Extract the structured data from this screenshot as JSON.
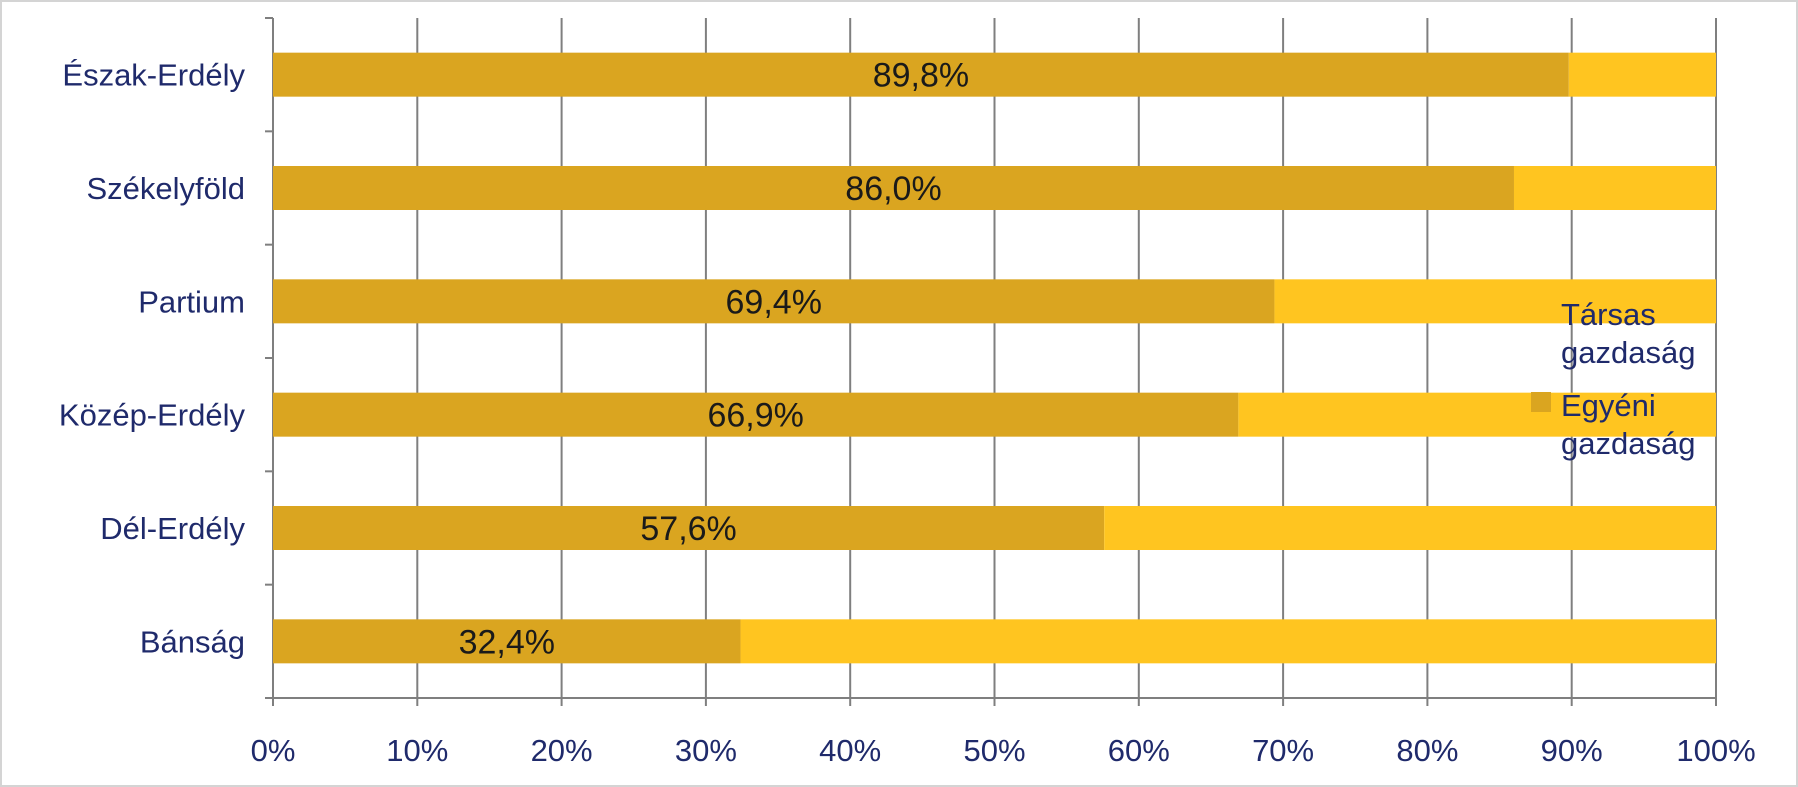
{
  "chart_data": {
    "type": "bar",
    "orientation": "horizontal",
    "stacked": "percent",
    "categories": [
      "Észak-Erdély",
      "Székelyföld",
      "Partium",
      "Közép-Erdély",
      "Dél-Erdély",
      "Bánság"
    ],
    "series": [
      {
        "name": "Egyéni gazdaság",
        "values": [
          89.8,
          86.0,
          69.4,
          66.9,
          57.6,
          32.4
        ],
        "labels": [
          "89,8%",
          "86,0%",
          "69,4%",
          "66,9%",
          "57,6%",
          "32,4%"
        ],
        "color": "#daa520"
      },
      {
        "name": "Társas gazdaság",
        "values": [
          10.2,
          14.0,
          30.6,
          33.1,
          42.4,
          67.6
        ],
        "color": "#ffc520"
      }
    ],
    "x_ticks": [
      "0%",
      "10%",
      "20%",
      "30%",
      "40%",
      "50%",
      "60%",
      "70%",
      "80%",
      "90%",
      "100%"
    ],
    "xlim": [
      0,
      100
    ],
    "grid": "vertical",
    "legend": {
      "position": "right",
      "entries": [
        {
          "line1": "Társas",
          "line2": "gazdaság",
          "series": 1
        },
        {
          "line1": "Egyéni",
          "line2": "gazdaság",
          "series": 0
        }
      ]
    },
    "colors": {
      "grid": "#7f7f7f",
      "axis": "#7f7f7f",
      "label_text": "#1f2a6b"
    }
  }
}
